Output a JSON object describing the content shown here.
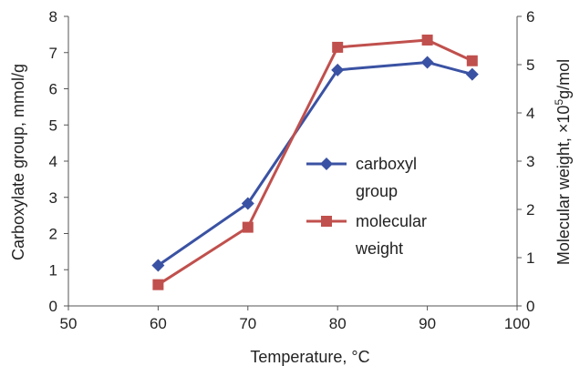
{
  "chart_data": {
    "type": "line",
    "xlabel": "Temperature, °C",
    "ylabel_left": "Carboxylate group, mmol/g",
    "ylabel_right_prefix": "Molecular weight, ×10",
    "ylabel_right_sup": "5",
    "ylabel_right_suffix": "g/mol",
    "xlim": [
      50,
      100
    ],
    "ylim_left": [
      0,
      8
    ],
    "ylim_right": [
      0,
      6
    ],
    "x_ticks": [
      "50",
      "60",
      "70",
      "80",
      "90",
      "100"
    ],
    "y_left_ticks": [
      "0",
      "1",
      "2",
      "3",
      "4",
      "5",
      "6",
      "7",
      "8"
    ],
    "y_right_ticks": [
      "0",
      "1",
      "2",
      "3",
      "4",
      "5",
      "6"
    ],
    "grid": false,
    "legend_position": "center",
    "x": [
      60,
      70,
      80,
      90,
      95
    ],
    "series": [
      {
        "name_line1": "carboxyl",
        "name_line2": "group",
        "axis": "left",
        "color": "#3a52a3",
        "marker": "diamond",
        "values": [
          1.12,
          2.83,
          6.52,
          6.73,
          6.4
        ]
      },
      {
        "name_line1": "molecular",
        "name_line2": "weight",
        "axis": "right",
        "color": "#c0504d",
        "marker": "square",
        "values": [
          0.44,
          1.63,
          5.36,
          5.51,
          5.08
        ]
      }
    ]
  }
}
